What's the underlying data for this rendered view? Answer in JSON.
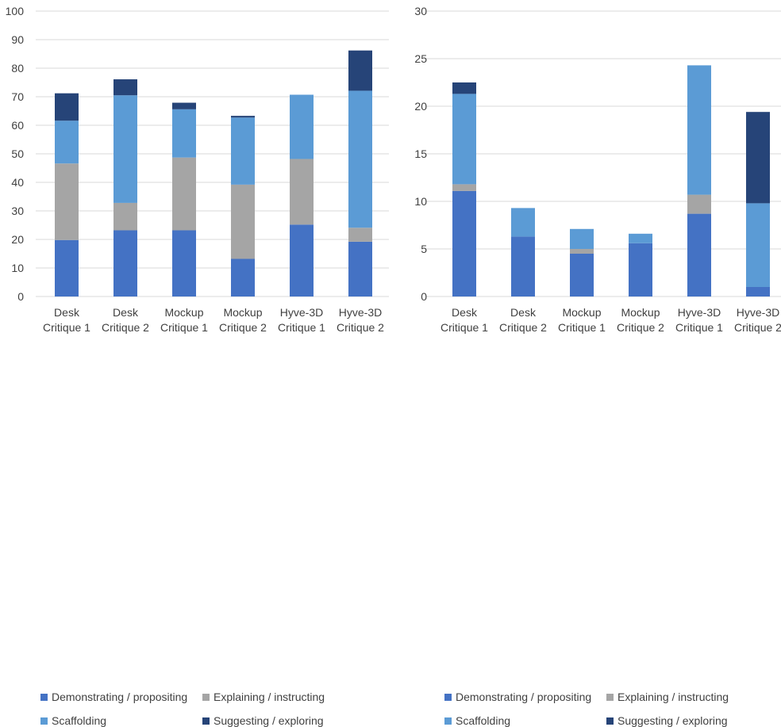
{
  "colors": {
    "demonstrating": "#4472c4",
    "explaining": "#a5a5a5",
    "scaffolding": "#5b9bd5",
    "suggesting": "#264478",
    "grid": "#d9d9d9",
    "text": "#404040"
  },
  "chart_data": [
    {
      "type": "bar",
      "stacked": true,
      "categories": [
        [
          "Desk",
          "Critique 1"
        ],
        [
          "Desk",
          "Critique 2"
        ],
        [
          "Mockup",
          "Critique 1"
        ],
        [
          "Mockup",
          "Critique 2"
        ],
        [
          "Hyve-3D",
          "Critique 1"
        ],
        [
          "Hyve-3D",
          "Critique 2"
        ]
      ],
      "series": [
        {
          "name": "Demonstrating / propositing",
          "values": [
            19.8,
            23.2,
            23.2,
            13.2,
            25.2,
            19.2
          ]
        },
        {
          "name": "Explaining / instructing",
          "values": [
            26.8,
            9.6,
            25.5,
            26.0,
            23.0,
            4.9
          ]
        },
        {
          "name": "Scaffolding",
          "values": [
            15.0,
            37.7,
            16.9,
            23.5,
            22.5,
            48.0
          ]
        },
        {
          "name": "Suggesting / exploring",
          "values": [
            9.6,
            5.6,
            2.3,
            0.6,
            0.0,
            14.1
          ]
        }
      ],
      "ylim": [
        0,
        100
      ],
      "yticks": [
        0,
        10,
        20,
        30,
        40,
        50,
        60,
        70,
        80,
        90,
        100
      ],
      "grid": true,
      "legend": "bottom"
    },
    {
      "type": "bar",
      "stacked": true,
      "categories": [
        [
          "Desk",
          "Critique 1"
        ],
        [
          "Desk",
          "Critique 2"
        ],
        [
          "Mockup",
          "Critique 1"
        ],
        [
          "Mockup",
          "Critique 2"
        ],
        [
          "Hyve-3D",
          "Critique 1"
        ],
        [
          "Hyve-3D",
          "Critique 2"
        ]
      ],
      "series": [
        {
          "name": "Demonstrating / propositing",
          "values": [
            11.1,
            6.3,
            4.5,
            5.6,
            8.7,
            1.0
          ]
        },
        {
          "name": "Explaining / instructing",
          "values": [
            0.7,
            0.0,
            0.5,
            0.0,
            2.0,
            0.0
          ]
        },
        {
          "name": "Scaffolding",
          "values": [
            9.5,
            3.0,
            2.1,
            1.0,
            13.6,
            8.8
          ]
        },
        {
          "name": "Suggesting / exploring",
          "values": [
            1.2,
            0.0,
            0.0,
            0.0,
            0.0,
            9.6
          ]
        }
      ],
      "ylim": [
        0,
        30
      ],
      "yticks": [
        0,
        5,
        10,
        15,
        20,
        25,
        30
      ],
      "grid": true,
      "legend": "bottom"
    }
  ]
}
